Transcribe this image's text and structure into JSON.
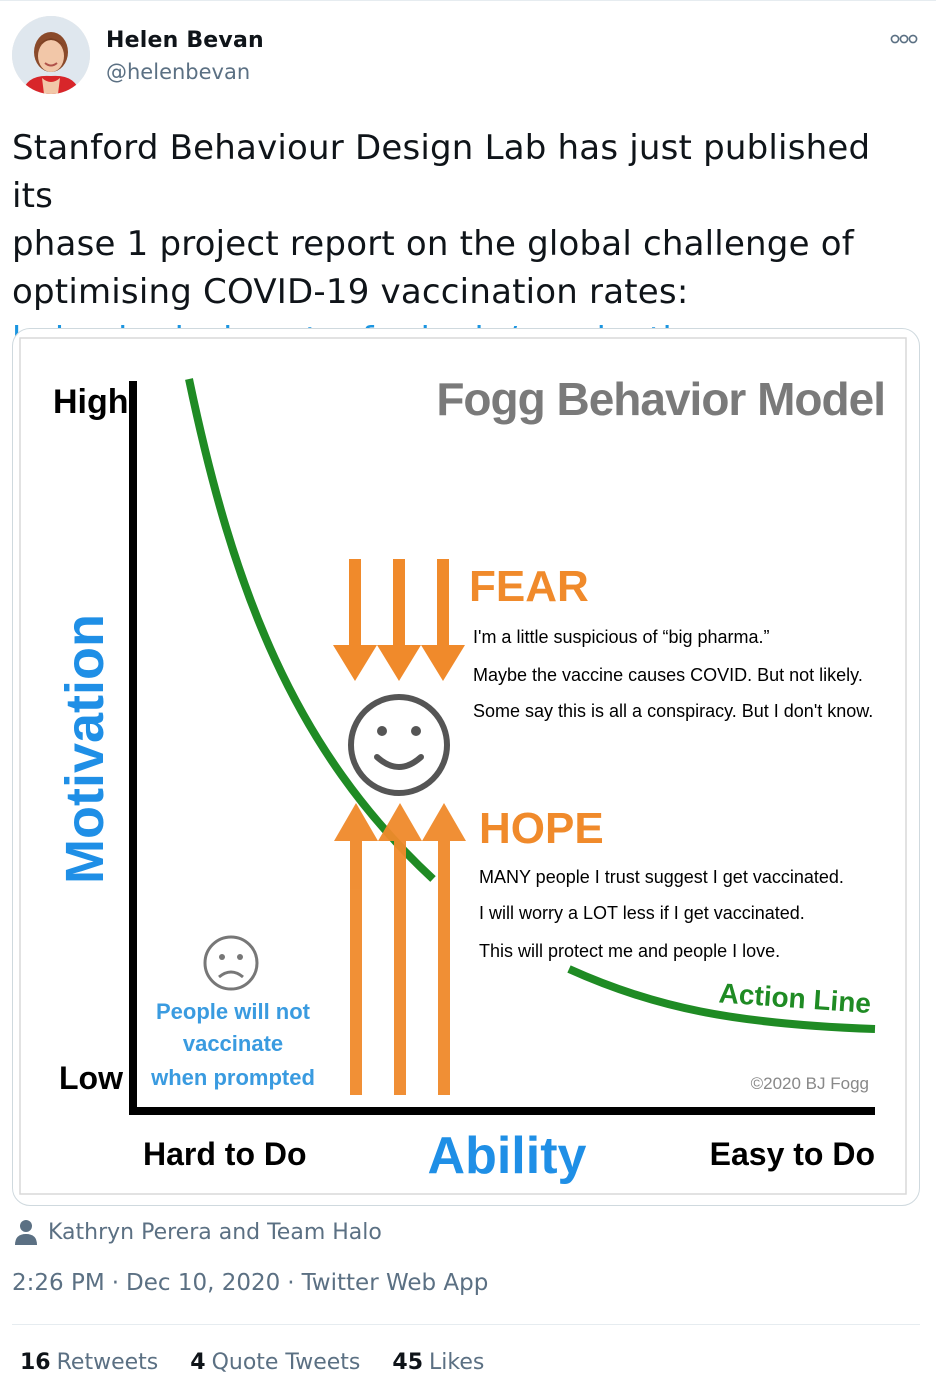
{
  "author": {
    "name": "Helen Bevan",
    "handle": "@helenbevan"
  },
  "tweet": {
    "text_lines": [
      "Stanford Behaviour Design Lab has just published its",
      "phase 1 project report on the global challenge of",
      "optimising COVID-19 vaccination rates:"
    ],
    "link": "behaviordesign.stanford.edu/vaccination"
  },
  "figure": {
    "title": "Fogg Behavior Model",
    "y_high": "High",
    "y_low": "Low",
    "y_label": "Motivation",
    "x_label": "Ability",
    "x_left": "Hard to Do",
    "x_right": "Easy to Do",
    "fear": {
      "heading": "FEAR",
      "lines": [
        "I'm a little suspicious of “big pharma.”",
        "Maybe the vaccine causes COVID. But not likely.",
        "Some say this is all a conspiracy. But I don't know."
      ]
    },
    "hope": {
      "heading": "HOPE",
      "lines": [
        "MANY people I trust suggest I get vaccinated.",
        "I will worry a LOT less if I get vaccinated.",
        "This will protect me and people I love."
      ]
    },
    "action_line": "Action Line",
    "people_note": [
      "People will not",
      "vaccinate",
      "when prompted"
    ],
    "copyright": "©2020 BJ Fogg",
    "colors": {
      "green": "#1f8b24",
      "orange": "#f08a2b",
      "blue": "#1f8fe6",
      "title_gray": "#7a7a7a",
      "face_gray": "#555555"
    }
  },
  "liked_by": "Kathryn Perera and Team Halo",
  "meta": {
    "time": "2:26 PM",
    "date": "Dec 10, 2020",
    "source": "Twitter Web App"
  },
  "stats": {
    "retweets_count": "16",
    "retweets_label": "Retweets",
    "quotes_count": "4",
    "quotes_label": "Quote Tweets",
    "likes_count": "45",
    "likes_label": "Likes"
  }
}
